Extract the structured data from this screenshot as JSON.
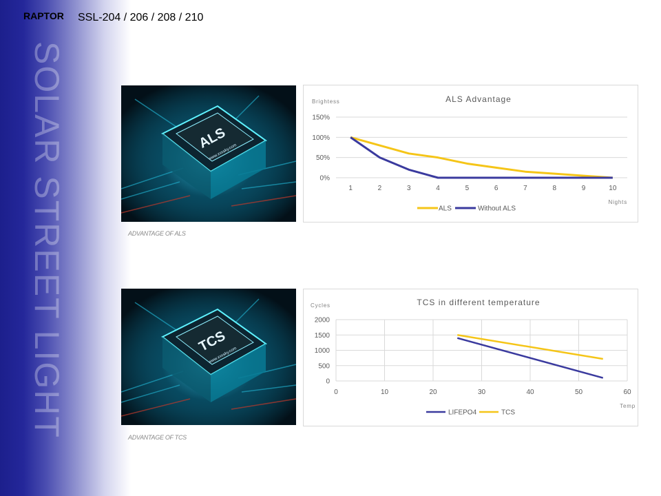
{
  "brand": "RAPTOR",
  "model": "SSL-204 / 206 / 208 / 210",
  "side_title": "SOLAR STREET LIGHT",
  "images": [
    {
      "chip_label": "ALS",
      "chip_sub": "www.xxxsky.com",
      "caption": "ADVANTAGE OF ALS"
    },
    {
      "chip_label": "TCS",
      "chip_sub": "www.xxxsky.com",
      "caption": "ADVANTAGE OF TCS"
    }
  ],
  "chart_data": [
    {
      "type": "line",
      "title": "ALS Advantage",
      "ylabel": "Brightess",
      "xlabel": "Nights",
      "x": [
        1,
        2,
        3,
        4,
        5,
        6,
        7,
        8,
        9,
        10
      ],
      "ylim": [
        0,
        150
      ],
      "yticks": [
        "0%",
        "50%",
        "100%",
        "150%"
      ],
      "ytick_values": [
        0,
        50,
        100,
        150
      ],
      "grid": true,
      "legend_position": "bottom",
      "series": [
        {
          "name": "ALS",
          "color": "#f5c518",
          "values": [
            100,
            80,
            60,
            50,
            35,
            25,
            15,
            10,
            5,
            0
          ]
        },
        {
          "name": "Without ALS",
          "color": "#3a3a9e",
          "values": [
            100,
            50,
            20,
            0,
            0,
            0,
            0,
            0,
            0,
            0
          ]
        }
      ]
    },
    {
      "type": "line",
      "title": "TCS in different temperature",
      "ylabel": "Cycles",
      "xlabel": "Temp",
      "xlim": [
        0,
        60
      ],
      "xticks": [
        0,
        10,
        20,
        30,
        40,
        50,
        60
      ],
      "ylim": [
        0,
        2000
      ],
      "yticks": [
        0,
        500,
        1000,
        1500,
        2000
      ],
      "grid": true,
      "legend_position": "bottom",
      "series": [
        {
          "name": "LIFEPO4",
          "color": "#3a3a9e",
          "x": [
            25,
            55
          ],
          "values": [
            1400,
            100
          ]
        },
        {
          "name": "TCS",
          "color": "#f5c518",
          "x": [
            25,
            55
          ],
          "values": [
            1500,
            720
          ]
        }
      ]
    }
  ]
}
